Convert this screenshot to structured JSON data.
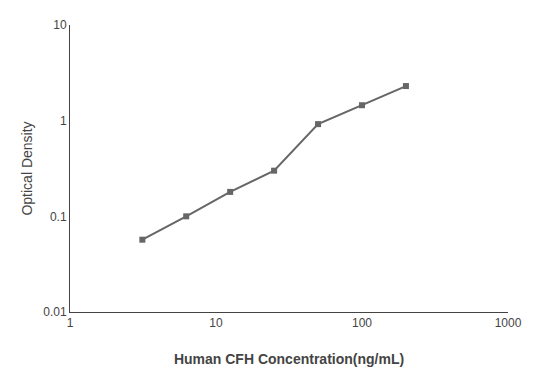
{
  "chart_data": {
    "type": "line",
    "x": [
      3.13,
      6.25,
      12.5,
      25,
      50,
      100,
      200
    ],
    "values": [
      0.057,
      0.1,
      0.18,
      0.3,
      0.92,
      1.45,
      2.3
    ],
    "xlabel": "Human CFH Concentration(ng/mL)",
    "ylabel": "Optical Density",
    "xlim": [
      1,
      1000
    ],
    "ylim": [
      0.01,
      10
    ],
    "xticks": [
      1,
      10,
      100,
      1000
    ],
    "yticks": [
      0.01,
      0.1,
      1,
      10
    ],
    "log": true,
    "grid": false,
    "color": "#666666",
    "marker": "square"
  }
}
